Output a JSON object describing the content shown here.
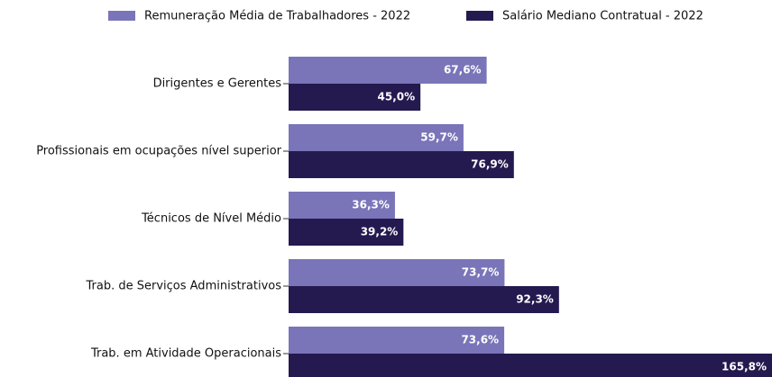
{
  "chart_data": {
    "type": "barh",
    "categories": [
      "Dirigentes e Gerentes",
      "Profissionais em ocupações nível superior",
      "Técnicos de Nível Médio",
      "Trab. de Serviços Administrativos",
      "Trab. em Atividade Operacionais"
    ],
    "series": [
      {
        "name": "Remuneração Média de Trabalhadores - 2022",
        "color": "#7a74b9",
        "values": [
          67.6,
          59.7,
          36.3,
          73.7,
          73.6
        ],
        "value_labels": [
          "67,6%",
          "59,7%",
          "36,3%",
          "73,7%",
          "73,6%"
        ]
      },
      {
        "name": "Salário Mediano Contratual - 2022",
        "color": "#241a4f",
        "values": [
          45.0,
          76.9,
          39.2,
          92.3,
          165.8
        ],
        "value_labels": [
          "45,0%",
          "76,9%",
          "39,2%",
          "92,3%",
          "165,8%"
        ]
      }
    ],
    "xlim": [
      0,
      165
    ],
    "legend": "top"
  }
}
